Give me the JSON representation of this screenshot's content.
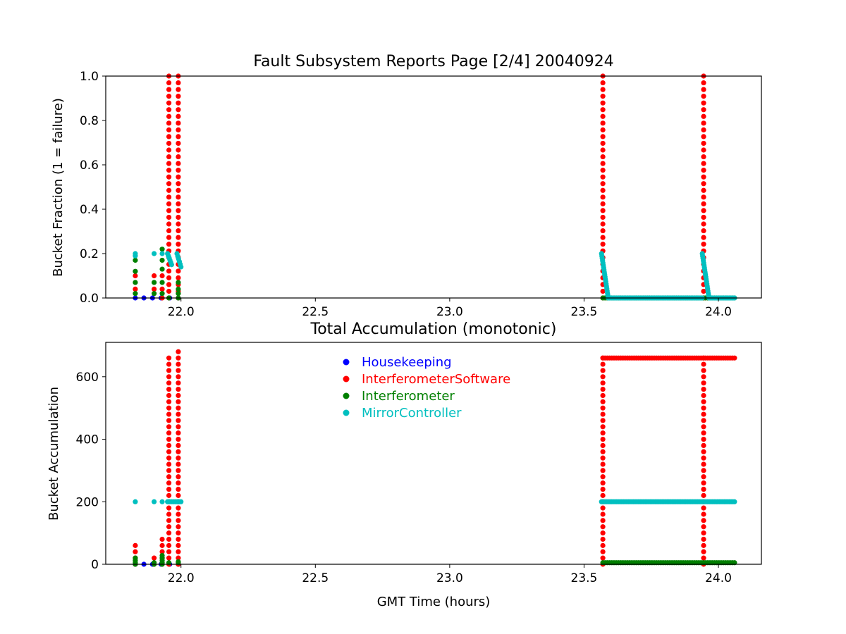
{
  "chart_data": [
    {
      "type": "scatter",
      "title": "Fault Subsystem Reports Page [2/4] 20040924",
      "xlabel": "",
      "ylabel": "Bucket Fraction (1 = failure)",
      "xlim": [
        21.72,
        24.16
      ],
      "ylim": [
        0,
        1.0
      ],
      "xticks": [
        22.0,
        22.5,
        23.0,
        23.5,
        24.0
      ],
      "xtick_labels": [
        "22.0",
        "22.5",
        "23.0",
        "23.5",
        "24.0"
      ],
      "yticks": [
        0.0,
        0.2,
        0.4,
        0.6,
        0.8,
        1.0
      ],
      "ytick_labels": [
        "0.0",
        "0.2",
        "0.4",
        "0.6",
        "0.8",
        "1.0"
      ],
      "grid": false,
      "series": [
        {
          "name": "Housekeeping",
          "color": "#0000ff",
          "segments": [
            {
              "kind": "constant",
              "x_start": 21.83,
              "x_end": 21.99,
              "y": 0.0,
              "n": 6
            }
          ]
        },
        {
          "name": "InterferometerSoftware",
          "color": "#ff0000",
          "segments": [
            {
              "kind": "points",
              "points": [
                [
                  21.83,
                  0.04
                ],
                [
                  21.83,
                  0.1
                ],
                [
                  21.9,
                  0.04
                ],
                [
                  21.9,
                  0.1
                ],
                [
                  21.93,
                  0.0
                ],
                [
                  21.93,
                  0.04
                ],
                [
                  21.93,
                  0.1
                ]
              ]
            },
            {
              "kind": "vertical",
              "x": 21.955,
              "y_start": 0.0,
              "y_end": 1.0,
              "n": 34
            },
            {
              "kind": "vertical",
              "x": 21.99,
              "y_start": 0.0,
              "y_end": 1.0,
              "n": 34
            },
            {
              "kind": "vertical",
              "x": 23.57,
              "y_start": 0.0,
              "y_end": 1.0,
              "n": 34
            },
            {
              "kind": "vertical",
              "x": 23.945,
              "y_start": 0.0,
              "y_end": 1.0,
              "n": 34
            }
          ]
        },
        {
          "name": "Interferometer",
          "color": "#008000",
          "segments": [
            {
              "kind": "points",
              "points": [
                [
                  21.83,
                  0.02
                ],
                [
                  21.83,
                  0.07
                ],
                [
                  21.83,
                  0.12
                ],
                [
                  21.83,
                  0.17
                ],
                [
                  21.9,
                  0.02
                ],
                [
                  21.9,
                  0.07
                ],
                [
                  21.93,
                  0.02
                ],
                [
                  21.93,
                  0.07
                ],
                [
                  21.93,
                  0.13
                ],
                [
                  21.93,
                  0.17
                ],
                [
                  21.93,
                  0.22
                ],
                [
                  21.955,
                  0.0
                ],
                [
                  21.99,
                  0.0
                ],
                [
                  21.99,
                  0.02
                ],
                [
                  21.99,
                  0.04
                ],
                [
                  21.99,
                  0.07
                ]
              ]
            },
            {
              "kind": "constant",
              "x_start": 23.57,
              "x_end": 24.06,
              "y": 0.0,
              "n": 60
            }
          ]
        },
        {
          "name": "MirrorController",
          "color": "#00bfbf",
          "segments": [
            {
              "kind": "points",
              "points": [
                [
                  21.83,
                  0.2
                ],
                [
                  21.83,
                  0.19
                ],
                [
                  21.9,
                  0.2
                ],
                [
                  21.93,
                  0.2
                ]
              ]
            },
            {
              "kind": "ramp",
              "x_start": 21.95,
              "x_end": 21.965,
              "y_start": 0.2,
              "y_end": 0.15,
              "n": 6
            },
            {
              "kind": "ramp",
              "x_start": 21.985,
              "x_end": 22.0,
              "y_start": 0.2,
              "y_end": 0.14,
              "n": 6
            },
            {
              "kind": "ramp",
              "x_start": 23.565,
              "x_end": 23.59,
              "y_start": 0.2,
              "y_end": 0.0,
              "n": 20
            },
            {
              "kind": "constant",
              "x_start": 23.59,
              "x_end": 23.94,
              "y": 0.0,
              "n": 60
            },
            {
              "kind": "ramp",
              "x_start": 23.94,
              "x_end": 23.965,
              "y_start": 0.2,
              "y_end": 0.0,
              "n": 20
            },
            {
              "kind": "constant",
              "x_start": 23.965,
              "x_end": 24.06,
              "y": 0.0,
              "n": 20
            }
          ]
        }
      ]
    },
    {
      "type": "scatter",
      "title": "Total Accumulation (monotonic)",
      "xlabel": "GMT Time (hours)",
      "ylabel": "Bucket Accumulation",
      "xlim": [
        21.72,
        24.16
      ],
      "ylim": [
        0,
        710
      ],
      "xticks": [
        22.0,
        22.5,
        23.0,
        23.5,
        24.0
      ],
      "xtick_labels": [
        "22.0",
        "22.5",
        "23.0",
        "23.5",
        "24.0"
      ],
      "yticks": [
        0,
        200,
        400,
        600
      ],
      "ytick_labels": [
        "0",
        "200",
        "400",
        "600"
      ],
      "grid": false,
      "legend": {
        "placement": "upper-center",
        "entries": [
          "Housekeeping",
          "InterferometerSoftware",
          "Interferometer",
          "MirrorController"
        ]
      },
      "series": [
        {
          "name": "Housekeeping",
          "color": "#0000ff",
          "segments": [
            {
              "kind": "constant",
              "x_start": 21.83,
              "x_end": 21.99,
              "y": 0,
              "n": 6
            }
          ]
        },
        {
          "name": "InterferometerSoftware",
          "color": "#ff0000",
          "segments": [
            {
              "kind": "points",
              "points": [
                [
                  21.83,
                  0
                ],
                [
                  21.83,
                  20
                ],
                [
                  21.83,
                  40
                ],
                [
                  21.83,
                  60
                ],
                [
                  21.9,
                  0
                ],
                [
                  21.9,
                  20
                ],
                [
                  21.93,
                  0
                ],
                [
                  21.93,
                  20
                ],
                [
                  21.93,
                  40
                ],
                [
                  21.93,
                  60
                ],
                [
                  21.93,
                  80
                ]
              ]
            },
            {
              "kind": "vertical",
              "x": 21.955,
              "y_start": 0,
              "y_end": 660,
              "n": 34
            },
            {
              "kind": "vertical",
              "x": 21.99,
              "y_start": 0,
              "y_end": 680,
              "n": 35
            },
            {
              "kind": "vertical",
              "x": 23.57,
              "y_start": 0,
              "y_end": 660,
              "n": 34
            },
            {
              "kind": "vertical",
              "x": 23.945,
              "y_start": 0,
              "y_end": 660,
              "n": 34
            },
            {
              "kind": "constant",
              "x_start": 23.57,
              "x_end": 24.06,
              "y": 660,
              "n": 60
            }
          ]
        },
        {
          "name": "Interferometer",
          "color": "#008000",
          "segments": [
            {
              "kind": "points",
              "points": [
                [
                  21.83,
                  0
                ],
                [
                  21.83,
                  5
                ],
                [
                  21.83,
                  12
                ],
                [
                  21.83,
                  20
                ],
                [
                  21.9,
                  0
                ],
                [
                  21.9,
                  5
                ],
                [
                  21.93,
                  0
                ],
                [
                  21.93,
                  5
                ],
                [
                  21.93,
                  12
                ],
                [
                  21.93,
                  20
                ],
                [
                  21.93,
                  28
                ],
                [
                  21.955,
                  5
                ],
                [
                  21.99,
                  5
                ],
                [
                  21.99,
                  8
                ]
              ]
            },
            {
              "kind": "constant",
              "x_start": 23.57,
              "x_end": 24.06,
              "y": 5,
              "n": 60
            }
          ]
        },
        {
          "name": "MirrorController",
          "color": "#00bfbf",
          "segments": [
            {
              "kind": "points",
              "points": [
                [
                  21.83,
                  200
                ],
                [
                  21.9,
                  200
                ],
                [
                  21.93,
                  200
                ]
              ]
            },
            {
              "kind": "constant",
              "x_start": 21.95,
              "x_end": 22.0,
              "y": 200,
              "n": 8
            },
            {
              "kind": "constant",
              "x_start": 23.565,
              "x_end": 24.06,
              "y": 200,
              "n": 80
            }
          ]
        }
      ]
    }
  ]
}
